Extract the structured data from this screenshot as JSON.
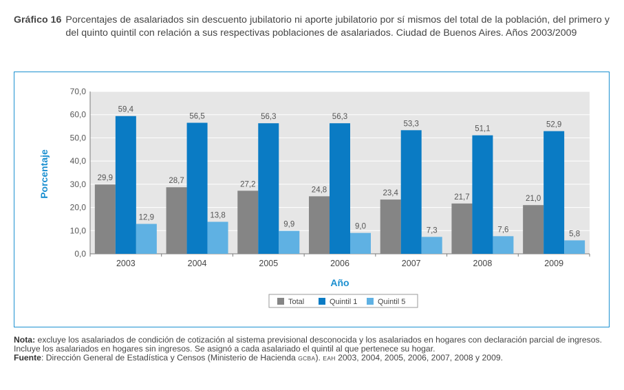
{
  "caption": {
    "label": "Gráfico 16",
    "text": "Porcentajes de asalariados sin descuento jubilatorio ni aporte jubilatorio por sí mismos del total de la población, del primero y del quinto quintil con relación a sus respectivas poblaciones de asalariados. Ciudad de Buenos Aires. Años 2003/2009"
  },
  "chart_data": {
    "type": "bar",
    "categories": [
      "2003",
      "2004",
      "2005",
      "2006",
      "2007",
      "2008",
      "2009"
    ],
    "series": [
      {
        "name": "Total",
        "color": "#858585",
        "values": [
          29.9,
          28.7,
          27.2,
          24.8,
          23.4,
          21.7,
          21.0
        ],
        "labels": [
          "29,9",
          "28,7",
          "27,2",
          "24,8",
          "23,4",
          "21,7",
          "21,0"
        ]
      },
      {
        "name": "Quintil 1",
        "color": "#0a7bc4",
        "values": [
          59.4,
          56.5,
          56.3,
          56.3,
          53.3,
          51.1,
          52.9
        ],
        "labels": [
          "59,4",
          "56,5",
          "56,3",
          "56,3",
          "53,3",
          "51,1",
          "52,9"
        ]
      },
      {
        "name": "Quintil 5",
        "color": "#5fb1e3",
        "values": [
          12.9,
          13.8,
          9.9,
          9.0,
          7.3,
          7.6,
          5.8
        ],
        "labels": [
          "12,9",
          "13,8",
          "9,9",
          "9,0",
          "7,3",
          "7,6",
          "5,8"
        ]
      }
    ],
    "ylim": [
      0,
      70
    ],
    "yticks": [
      "0,0",
      "10,0",
      "20,0",
      "30,0",
      "40,0",
      "50,0",
      "60,0",
      "70,0"
    ],
    "xlabel": "Año",
    "ylabel": "Porcentaje",
    "legend_position": "bottom-center",
    "grid": true
  },
  "notes": {
    "nota_label": "Nota:",
    "nota_text": "excluye los asalariados de condición de cotización al sistema previsional desconocida y los asalariados en hogares con declaración parcial de ingresos. Incluye los asalariados en hogares sin ingresos. Se asignó a cada asalariado el quintil al que pertenece su hogar.",
    "fuente_label": "Fuente",
    "fuente_text_1": ": Dirección General de Estadística y Censos (Ministerio de Hacienda",
    "fuente_sc_1": "GCBA",
    "fuente_text_2": ").",
    "fuente_sc_2": "EAH",
    "fuente_text_3": "2003, 2004, 2005, 2006, 2007, 2008 y 2009."
  }
}
